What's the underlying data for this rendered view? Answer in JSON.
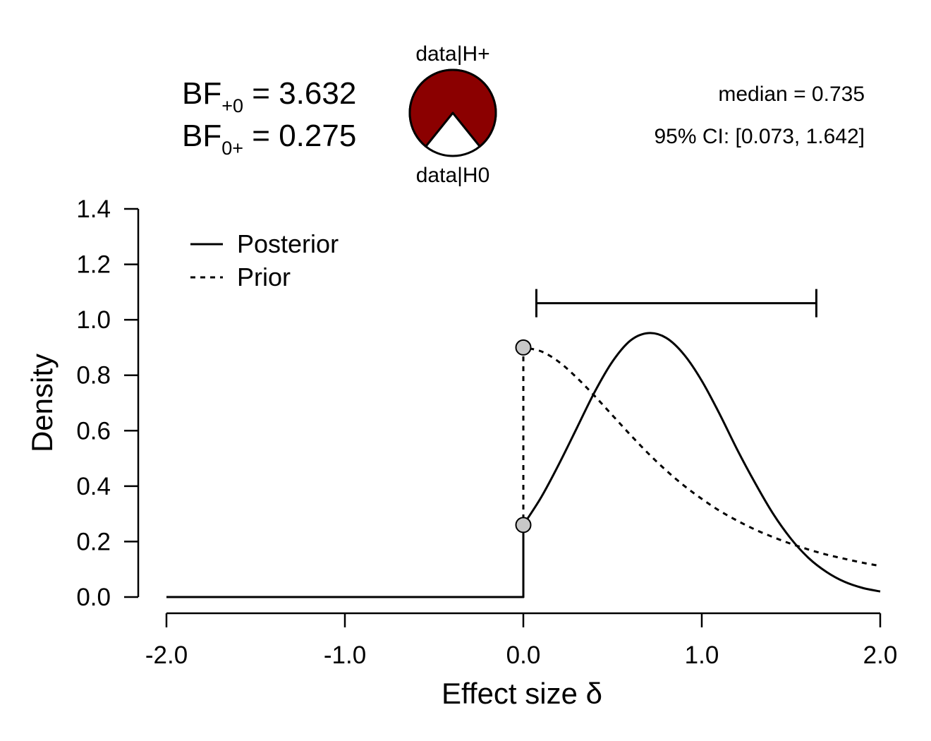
{
  "header": {
    "bf_plus0": {
      "prefix": "BF",
      "sub": "+0",
      "eq": " = ",
      "value": "3.632"
    },
    "bf_0plus": {
      "prefix": "BF",
      "sub": "0+",
      "eq": " = ",
      "value": "0.275"
    },
    "pizza_top_label": "data|H+",
    "pizza_bottom_label": "data|H0",
    "median_text": "median = 0.735",
    "ci_text": "95% CI: [0.073, 1.642]"
  },
  "colors": {
    "pizza_h_plus": "#8b0000",
    "pizza_h0": "#ffffff",
    "point_fill": "#c8c8c8",
    "line": "#000000"
  },
  "chart_data": {
    "type": "line",
    "xlabel": "Effect size δ",
    "ylabel": "Density",
    "xlim": [
      -2.0,
      2.0
    ],
    "ylim": [
      0.0,
      1.4
    ],
    "x_ticks": [
      "-2.0",
      "-1.0",
      "0.0",
      "1.0",
      "2.0"
    ],
    "y_ticks": [
      "0.0",
      "0.2",
      "0.4",
      "0.6",
      "0.8",
      "1.0",
      "1.2",
      "1.4"
    ],
    "legend_position": "top-left",
    "grid": false,
    "bayes_factor": {
      "BF_plus0": 3.632,
      "BF_0plus": 0.275
    },
    "posterior_median": 0.735,
    "credible_interval": {
      "level": 0.95,
      "lower": 0.073,
      "upper": 1.642
    },
    "series": [
      {
        "name": "Posterior",
        "style": "solid",
        "x": [
          -2.0,
          0.0,
          0.0,
          0.1,
          0.2,
          0.3,
          0.4,
          0.5,
          0.6,
          0.7,
          0.8,
          0.9,
          1.0,
          1.1,
          1.2,
          1.3,
          1.4,
          1.5,
          1.6,
          1.7,
          1.8,
          1.9,
          2.0
        ],
        "y": [
          0.0,
          0.0,
          0.26,
          0.36,
          0.48,
          0.61,
          0.74,
          0.85,
          0.925,
          0.952,
          0.935,
          0.875,
          0.78,
          0.66,
          0.53,
          0.41,
          0.3,
          0.21,
          0.14,
          0.09,
          0.055,
          0.033,
          0.02
        ]
      },
      {
        "name": "Prior",
        "style": "dashed",
        "x": [
          -2.0,
          0.0,
          0.0,
          0.1,
          0.2,
          0.3,
          0.4,
          0.5,
          0.6,
          0.7,
          0.8,
          0.9,
          1.0,
          1.1,
          1.2,
          1.3,
          1.4,
          1.5,
          1.6,
          1.7,
          1.8,
          1.9,
          2.0
        ],
        "y": [
          0.0,
          0.0,
          0.9,
          0.886,
          0.848,
          0.791,
          0.725,
          0.655,
          0.585,
          0.518,
          0.457,
          0.402,
          0.354,
          0.311,
          0.275,
          0.243,
          0.216,
          0.192,
          0.171,
          0.153,
          0.138,
          0.124,
          0.112
        ]
      }
    ],
    "points": [
      {
        "x": 0.0,
        "y": 0.9,
        "series": "Prior"
      },
      {
        "x": 0.0,
        "y": 0.26,
        "series": "Posterior"
      }
    ]
  }
}
